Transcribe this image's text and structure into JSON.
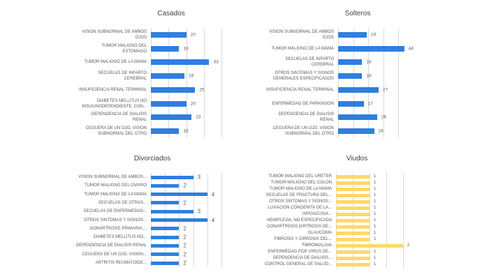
{
  "chart_data": [
    {
      "type": "bar",
      "orientation": "horizontal",
      "title": "Casados",
      "color": "#2e7fe0",
      "xlim": [
        0,
        40
      ],
      "grid_step": 10,
      "categories": [
        "VISION SUBNORMAL DE AMBOS OJOS",
        "TUMOR MALIGNO DEL ESTOMAGO",
        "TUMOR MALIGNO DE LA MAMA",
        "SECUELAS DE INFARTO CEREBRAL",
        "INSUFICIENCIA RENAL TERMINAL",
        "DIABETES MELLITUS NO INSULINODEPENDIENTE, CON...",
        "DEPENDENCIA DE DIALISIS RENAL",
        "CEGUERA DE UN OJO, VISION SUBNORMAL DEL OTRO"
      ],
      "values": [
        20,
        16,
        33,
        19,
        25,
        20,
        23,
        16
      ]
    },
    {
      "type": "bar",
      "orientation": "horizontal",
      "title": "Solteros",
      "color": "#2e7fe0",
      "xlim": [
        0,
        50
      ],
      "grid_step": 10,
      "categories": [
        "VISION SUBNORMAL DE AMBOS OJOS",
        "TUMOR MALIGNO DE LA MAMA",
        "SECUELAS DE INFARTO CEREBRAL",
        "OTROS SINTOMAS Y SIGNOS GENERALES ESPECIFICADOS",
        "INSUFICIENCIA RENAL TERMINAL",
        "ENFERMEDAD DE PARKINSON",
        "DEPENDENCIA DE DIALISIS RENAL",
        "CEGUERA DE UN OJO, VISION SUBNORMAL DEL OTRO"
      ],
      "values": [
        19,
        44,
        16,
        16,
        27,
        17,
        26,
        24
      ]
    },
    {
      "type": "bar",
      "orientation": "horizontal",
      "title": "Divorciados",
      "color": "#2e7fe0",
      "xlim": [
        0,
        5
      ],
      "grid_step": 1,
      "categories": [
        "VISION SUBNORMAL DE AMBOS...",
        "TUMOR MALIGNO DEL OVARIO",
        "TUMOR MALIGNO DE LA MAMA",
        "SECUELAS DE OTRAS...",
        "SECUELAS DE ENFERMEDAD...",
        "OTROS SINTOMAS Y SIGNOS...",
        "GONARTROSIS PRIMARIA,...",
        "DIABETES MELLITUS NO...",
        "DEPENDENCIA DE DIALISIS RENAL",
        "CEGUERA DE UN OJO, VISION...",
        "ARTRITIS REUMATOIDE..."
      ],
      "values": [
        3,
        2,
        4,
        2,
        3,
        4,
        2,
        2,
        2,
        2,
        2
      ]
    },
    {
      "type": "bar",
      "orientation": "horizontal",
      "title": "Viudos",
      "color": "#ffd966",
      "xlim": [
        0,
        2
      ],
      "grid_step": 0.5,
      "categories": [
        "TUMOR MALIGNO DEL URETER",
        "TUMOR MALIGNO DEL COLON",
        "TUMOR MALIGNO DE LA MAMA",
        "SECUELAS DE FRACTURA DEL...",
        "OTROS SINTOMAS Y SIGNOS...",
        "LUXACION CONGENITA DE LA...",
        "HIPOACUSIA...",
        "HEMIPLEJIA, NO ESPECIFICADA",
        "GONARTROSIS [ARTROSIS DE...",
        "GLAUCOMA",
        "FIBROSIS Y CIRROSIS DEL...",
        "FIBROMIALGIA",
        "ENFERMEDAD POR VIRUS DE...",
        "DEPENDENCIA DE DIALISIS...",
        "CONTROL GENERAL DE SALUD..."
      ],
      "values": [
        1,
        1,
        1,
        1,
        1,
        1,
        1,
        1,
        1,
        1,
        1,
        2,
        1,
        1,
        1
      ]
    }
  ]
}
